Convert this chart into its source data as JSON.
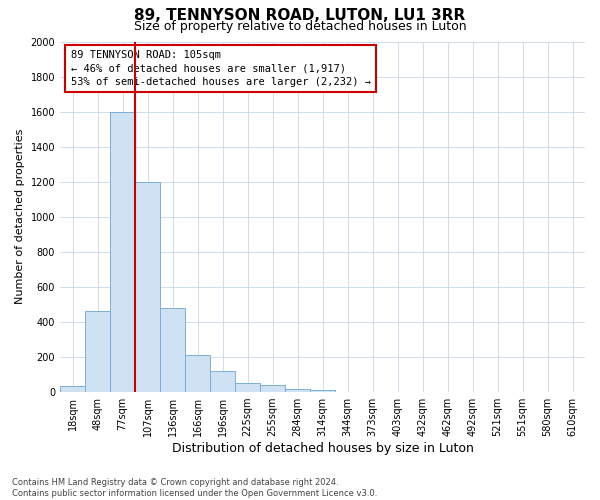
{
  "title": "89, TENNYSON ROAD, LUTON, LU1 3RR",
  "subtitle": "Size of property relative to detached houses in Luton",
  "xlabel": "Distribution of detached houses by size in Luton",
  "ylabel": "Number of detached properties",
  "categories": [
    "18sqm",
    "48sqm",
    "77sqm",
    "107sqm",
    "136sqm",
    "166sqm",
    "196sqm",
    "225sqm",
    "255sqm",
    "284sqm",
    "314sqm",
    "344sqm",
    "373sqm",
    "403sqm",
    "432sqm",
    "462sqm",
    "492sqm",
    "521sqm",
    "551sqm",
    "580sqm",
    "610sqm"
  ],
  "values": [
    35,
    460,
    1600,
    1200,
    480,
    210,
    120,
    50,
    40,
    20,
    10,
    0,
    0,
    0,
    0,
    0,
    0,
    0,
    0,
    0,
    0
  ],
  "bar_color": "#cfe2f3",
  "bar_edge_color": "#7bafd4",
  "grid_color": "#c8d8e8",
  "bg_color": "#ffffff",
  "vline_color": "#cc0000",
  "annotation_text": "89 TENNYSON ROAD: 105sqm\n← 46% of detached houses are smaller (1,917)\n53% of semi-detached houses are larger (2,232) →",
  "annotation_box_color": "#cc0000",
  "ylim": [
    0,
    2000
  ],
  "yticks": [
    0,
    200,
    400,
    600,
    800,
    1000,
    1200,
    1400,
    1600,
    1800,
    2000
  ],
  "footnote": "Contains HM Land Registry data © Crown copyright and database right 2024.\nContains public sector information licensed under the Open Government Licence v3.0.",
  "title_fontsize": 11,
  "subtitle_fontsize": 9,
  "xlabel_fontsize": 9,
  "ylabel_fontsize": 8,
  "tick_fontsize": 7,
  "annot_fontsize": 7.5,
  "footnote_fontsize": 6
}
